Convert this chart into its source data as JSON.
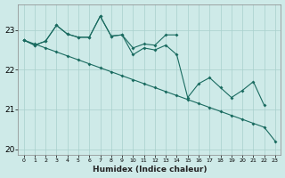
{
  "xlabel": "Humidex (Indice chaleur)",
  "xlim": [
    -0.5,
    23.5
  ],
  "ylim": [
    19.85,
    23.65
  ],
  "yticks": [
    20,
    21,
    22,
    23
  ],
  "xticks": [
    0,
    1,
    2,
    3,
    4,
    5,
    6,
    7,
    8,
    9,
    10,
    11,
    12,
    13,
    14,
    15,
    16,
    17,
    18,
    19,
    20,
    21,
    22,
    23
  ],
  "background_color": "#ceeae8",
  "grid_color": "#a8d0cc",
  "line_color": "#1a6b60",
  "line1_x": [
    0,
    1,
    2,
    3,
    4,
    5,
    6,
    7,
    8,
    9,
    10,
    11,
    12,
    13,
    14
  ],
  "line1_y": [
    22.75,
    22.62,
    22.72,
    23.12,
    22.9,
    22.82,
    22.82,
    23.35,
    22.85,
    22.88,
    22.55,
    22.65,
    22.62,
    22.88,
    22.88
  ],
  "line2_x": [
    0,
    1,
    2,
    3,
    4,
    5,
    6,
    7,
    8,
    9,
    10,
    11,
    12,
    13,
    14,
    15,
    16,
    17,
    18,
    19,
    20,
    21,
    22
  ],
  "line2_y": [
    22.75,
    22.62,
    22.72,
    23.12,
    22.9,
    22.82,
    22.82,
    23.35,
    22.85,
    22.88,
    22.38,
    22.55,
    22.5,
    22.62,
    22.38,
    21.3,
    21.65,
    21.8,
    21.55,
    21.3,
    21.48,
    21.7,
    21.1
  ],
  "line3_x": [
    0,
    1,
    2,
    3,
    4,
    5,
    6,
    7,
    8,
    9,
    10,
    11,
    12,
    13,
    14,
    15,
    16,
    17,
    18,
    19,
    20,
    21,
    22,
    23
  ],
  "line3_y": [
    22.75,
    22.65,
    22.55,
    22.45,
    22.35,
    22.25,
    22.15,
    22.05,
    21.95,
    21.85,
    21.75,
    21.65,
    21.55,
    21.45,
    21.35,
    21.25,
    21.15,
    21.05,
    20.95,
    20.85,
    20.75,
    20.65,
    20.55,
    20.2
  ]
}
